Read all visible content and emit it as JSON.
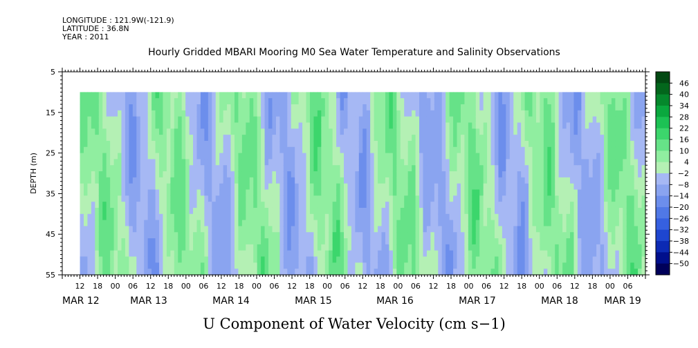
{
  "header": {
    "longitude": "LONGITUDE : 121.9W(-121.9)",
    "latitude": "LATITUDE : 36.8N",
    "year": "YEAR : 2011"
  },
  "chart_data": {
    "type": "heatmap",
    "title": "Hourly Gridded MBARI Mooring M0 Sea Water Temperature and Salinity Observations",
    "subtitle": "U Component of Water Velocity (cm s−1)",
    "ylabel": "DEPTH (m)",
    "xlabel": "",
    "ylim": [
      5,
      55
    ],
    "y_inverted": true,
    "y_ticks": [
      5,
      15,
      25,
      35,
      45,
      55
    ],
    "data_depth_range": [
      10,
      55
    ],
    "x_range_hours": [
      0,
      198
    ],
    "x_hour_ticks": [
      "12",
      "18",
      "00",
      "06",
      "12",
      "18",
      "00",
      "06",
      "12",
      "18",
      "00",
      "06",
      "12",
      "18",
      "00",
      "06",
      "12",
      "18",
      "00",
      "06",
      "12",
      "18",
      "00",
      "06",
      "12",
      "18",
      "00",
      "06",
      "12",
      "18",
      "00",
      "06"
    ],
    "x_date_labels": [
      "MAR 12",
      "MAR 13",
      "MAR 14",
      "MAR 15",
      "MAR 16",
      "MAR 17",
      "MAR 18",
      "MAR 19"
    ],
    "data_start_hour": 6,
    "colorbar": {
      "levels": [
        -50,
        -44,
        -38,
        -32,
        -26,
        -20,
        -14,
        -8,
        -2,
        4,
        10,
        16,
        22,
        28,
        34,
        40,
        46
      ],
      "labels": [
        "46",
        "40",
        "34",
        "28",
        "22",
        "16",
        "10",
        "4",
        "−2",
        "−8",
        "−14",
        "−20",
        "−26",
        "−32",
        "−38",
        "−44",
        "−50"
      ],
      "colors": [
        "#00005a",
        "#000f8c",
        "#0c2ab4",
        "#1e46d0",
        "#3660e0",
        "#5078e6",
        "#6c8eec",
        "#8aa4f0",
        "#a6b8f4",
        "#b4f0b4",
        "#90eea0",
        "#66e288",
        "#3cd66c",
        "#1cc254",
        "#0aa83e",
        "#05882c",
        "#03661c",
        "#024812"
      ]
    },
    "grid": false,
    "legend": "colorbar at right"
  }
}
